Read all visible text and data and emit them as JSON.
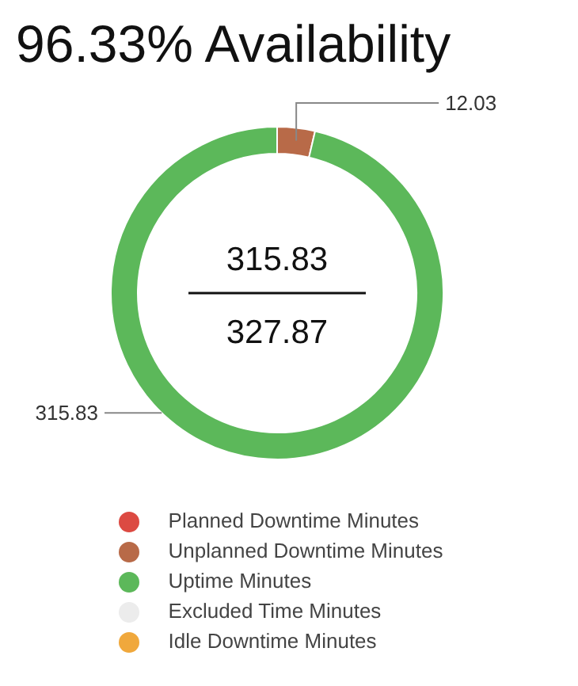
{
  "chart_data": {
    "type": "donut",
    "title": "96.33% Availability",
    "categories": [
      "Planned Downtime Minutes",
      "Unplanned Downtime Minutes",
      "Uptime Minutes",
      "Excluded Time Minutes",
      "Idle Downtime Minutes"
    ],
    "values": [
      0,
      12.03,
      315.83,
      0,
      0
    ],
    "colors": [
      "#dc4a42",
      "#b86a48",
      "#5cb85a",
      "#ececec",
      "#f0a83c"
    ],
    "value_labels": [
      null,
      "12.03",
      "315.83",
      null,
      null
    ],
    "annotations": [
      "315.83",
      "327.87"
    ],
    "legend": "bottom"
  }
}
